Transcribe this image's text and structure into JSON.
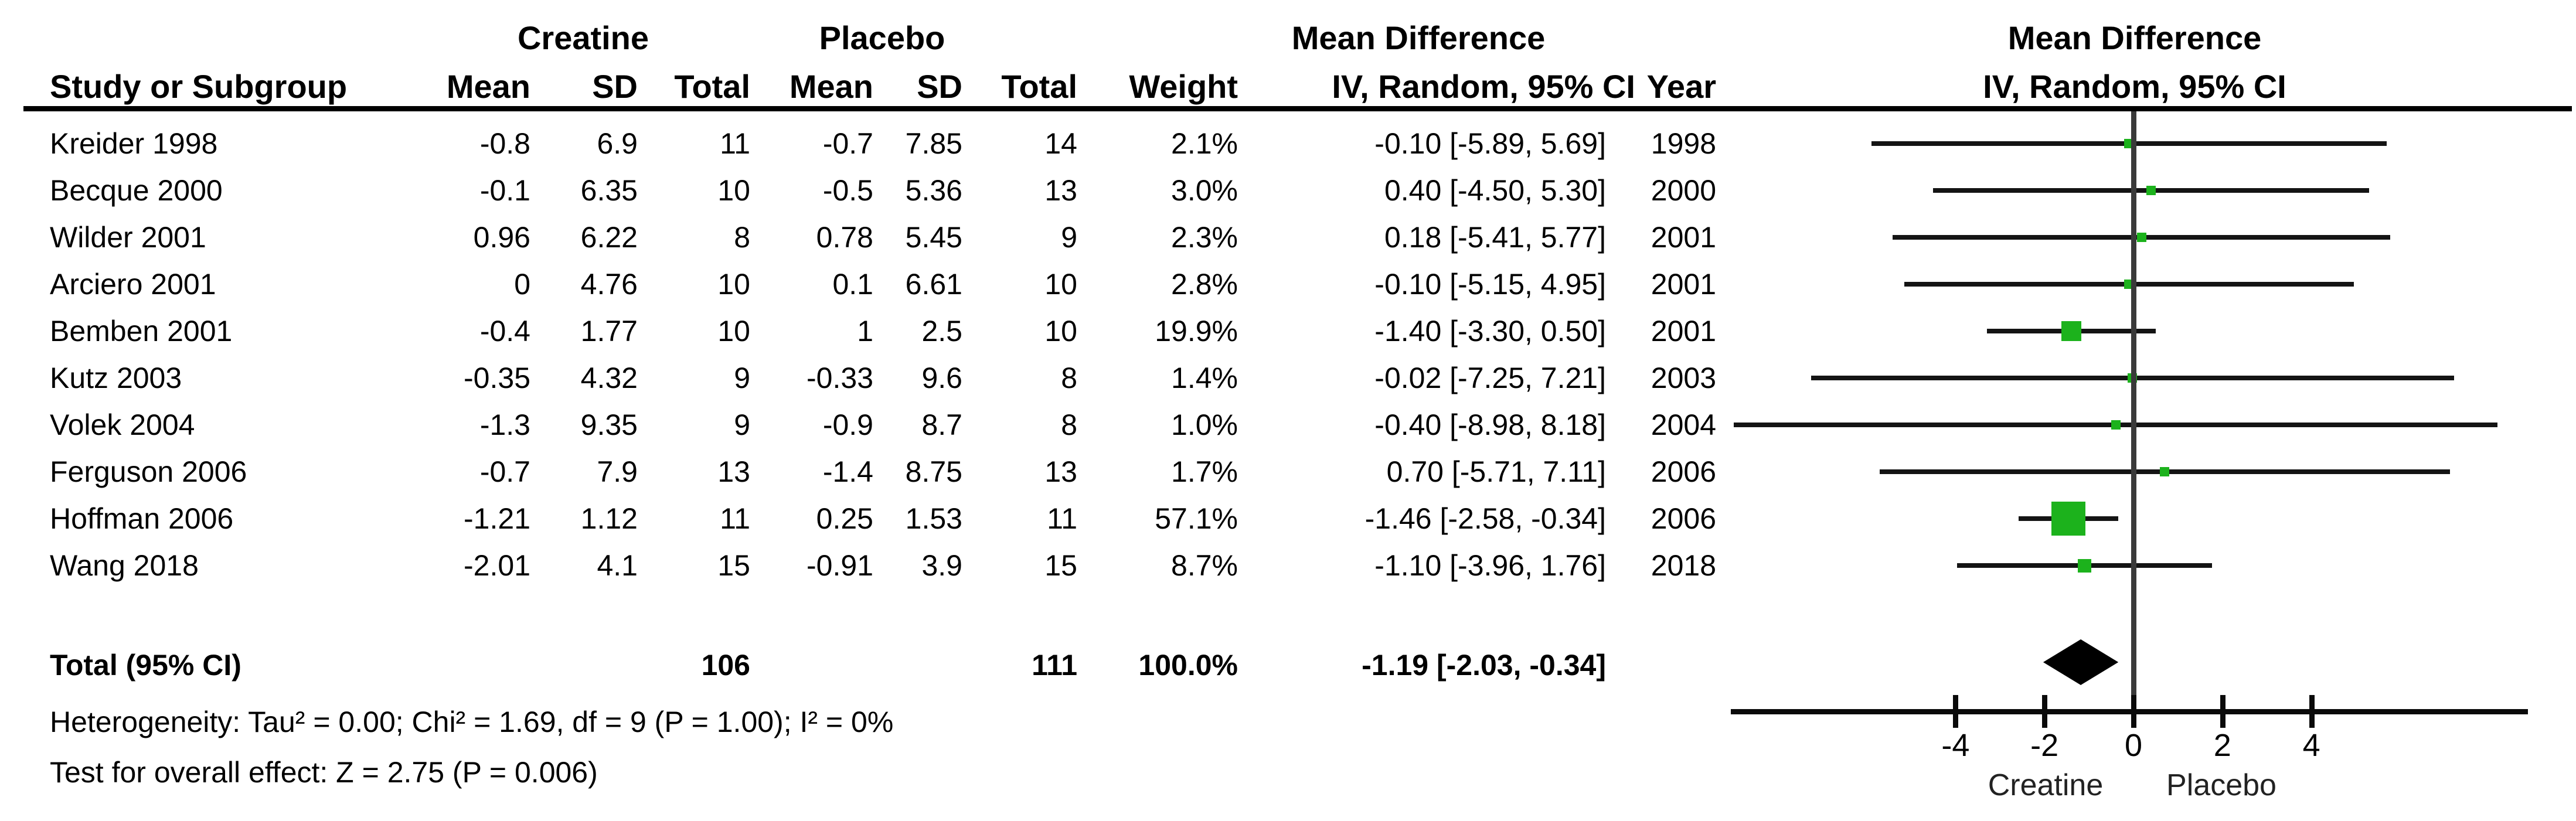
{
  "table": {
    "headers": {
      "group1": "Creatine",
      "group2": "Placebo",
      "study": "Study or Subgroup",
      "mean": "Mean",
      "sd": "SD",
      "total": "Total",
      "weight": "Weight",
      "mean_difference": "Mean Difference",
      "iv_random": "IV, Random, 95% CI",
      "year": "Year"
    },
    "rows": [
      {
        "name": "Kreider 1998",
        "c_mean": "-0.8",
        "c_sd": "6.9",
        "c_total": "11",
        "p_mean": "-0.7",
        "p_sd": "7.85",
        "p_total": "14",
        "weight": "2.1%",
        "ci": "-0.10 [-5.89, 5.69]",
        "year": "1998"
      },
      {
        "name": "Becque 2000",
        "c_mean": "-0.1",
        "c_sd": "6.35",
        "c_total": "10",
        "p_mean": "-0.5",
        "p_sd": "5.36",
        "p_total": "13",
        "weight": "3.0%",
        "ci": "0.40 [-4.50, 5.30]",
        "year": "2000"
      },
      {
        "name": "Wilder 2001",
        "c_mean": "0.96",
        "c_sd": "6.22",
        "c_total": "8",
        "p_mean": "0.78",
        "p_sd": "5.45",
        "p_total": "9",
        "weight": "2.3%",
        "ci": "0.18 [-5.41, 5.77]",
        "year": "2001"
      },
      {
        "name": "Arciero 2001",
        "c_mean": "0",
        "c_sd": "4.76",
        "c_total": "10",
        "p_mean": "0.1",
        "p_sd": "6.61",
        "p_total": "10",
        "weight": "2.8%",
        "ci": "-0.10 [-5.15, 4.95]",
        "year": "2001"
      },
      {
        "name": "Bemben 2001",
        "c_mean": "-0.4",
        "c_sd": "1.77",
        "c_total": "10",
        "p_mean": "1",
        "p_sd": "2.5",
        "p_total": "10",
        "weight": "19.9%",
        "ci": "-1.40 [-3.30, 0.50]",
        "year": "2001"
      },
      {
        "name": "Kutz 2003",
        "c_mean": "-0.35",
        "c_sd": "4.32",
        "c_total": "9",
        "p_mean": "-0.33",
        "p_sd": "9.6",
        "p_total": "8",
        "weight": "1.4%",
        "ci": "-0.02 [-7.25, 7.21]",
        "year": "2003"
      },
      {
        "name": "Volek 2004",
        "c_mean": "-1.3",
        "c_sd": "9.35",
        "c_total": "9",
        "p_mean": "-0.9",
        "p_sd": "8.7",
        "p_total": "8",
        "weight": "1.0%",
        "ci": "-0.40 [-8.98, 8.18]",
        "year": "2004"
      },
      {
        "name": "Ferguson 2006",
        "c_mean": "-0.7",
        "c_sd": "7.9",
        "c_total": "13",
        "p_mean": "-1.4",
        "p_sd": "8.75",
        "p_total": "13",
        "weight": "1.7%",
        "ci": "0.70 [-5.71, 7.11]",
        "year": "2006"
      },
      {
        "name": "Hoffman 2006",
        "c_mean": "-1.21",
        "c_sd": "1.12",
        "c_total": "11",
        "p_mean": "0.25",
        "p_sd": "1.53",
        "p_total": "11",
        "weight": "57.1%",
        "ci": "-1.46 [-2.58, -0.34]",
        "year": "2006"
      },
      {
        "name": "Wang 2018",
        "c_mean": "-2.01",
        "c_sd": "4.1",
        "c_total": "15",
        "p_mean": "-0.91",
        "p_sd": "3.9",
        "p_total": "15",
        "weight": "8.7%",
        "ci": "-1.10 [-3.96, 1.76]",
        "year": "2018"
      }
    ],
    "total_row": {
      "label": "Total (95% CI)",
      "c_total": "106",
      "p_total": "111",
      "weight": "100.0%",
      "ci": "-1.19 [-2.03, -0.34]"
    }
  },
  "footnotes": {
    "heterogeneity": "Heterogeneity: Tau² = 0.00; Chi² = 1.69, df = 9 (P = 1.00); I² = 0%",
    "overall_effect": "Test for overall effect: Z = 2.75 (P = 0.006)"
  },
  "plot": {
    "axis_ticks": [
      "-4",
      "-2",
      "0",
      "2",
      "4"
    ],
    "left_label": "Creatine",
    "right_label": "Placebo"
  },
  "colors": {
    "square_green": "#1cb21c",
    "diamond_black": "#000000",
    "ci_line": "#141414",
    "zero_line": "#3a3a3a"
  },
  "chart_data": {
    "type": "forest",
    "title": "Mean Difference, IV, Random, 95% CI",
    "xlabel_left": "Creatine",
    "xlabel_right": "Placebo",
    "axis": {
      "ticks": [
        -4,
        -2,
        0,
        2,
        4
      ],
      "xlim": [
        -9.05,
        8.85
      ],
      "zero_line": 0
    },
    "studies": [
      {
        "name": "Kreider 1998",
        "year": 1998,
        "md": -0.1,
        "ci_low": -5.89,
        "ci_high": 5.69,
        "weight_pct": 2.1
      },
      {
        "name": "Becque 2000",
        "year": 2000,
        "md": 0.4,
        "ci_low": -4.5,
        "ci_high": 5.3,
        "weight_pct": 3.0
      },
      {
        "name": "Wilder 2001",
        "year": 2001,
        "md": 0.18,
        "ci_low": -5.41,
        "ci_high": 5.77,
        "weight_pct": 2.3
      },
      {
        "name": "Arciero 2001",
        "year": 2001,
        "md": -0.1,
        "ci_low": -5.15,
        "ci_high": 4.95,
        "weight_pct": 2.8
      },
      {
        "name": "Bemben 2001",
        "year": 2001,
        "md": -1.4,
        "ci_low": -3.3,
        "ci_high": 0.5,
        "weight_pct": 19.9
      },
      {
        "name": "Kutz 2003",
        "year": 2003,
        "md": -0.02,
        "ci_low": -7.25,
        "ci_high": 7.21,
        "weight_pct": 1.4
      },
      {
        "name": "Volek 2004",
        "year": 2004,
        "md": -0.4,
        "ci_low": -8.98,
        "ci_high": 8.18,
        "weight_pct": 1.0
      },
      {
        "name": "Ferguson 2006",
        "year": 2006,
        "md": 0.7,
        "ci_low": -5.71,
        "ci_high": 7.11,
        "weight_pct": 1.7
      },
      {
        "name": "Hoffman 2006",
        "year": 2006,
        "md": -1.46,
        "ci_low": -2.58,
        "ci_high": -0.34,
        "weight_pct": 57.1
      },
      {
        "name": "Wang 2018",
        "year": 2018,
        "md": -1.1,
        "ci_low": -3.96,
        "ci_high": 1.76,
        "weight_pct": 8.7
      }
    ],
    "total": {
      "label": "Total (95% CI)",
      "md": -1.19,
      "ci_low": -2.03,
      "ci_high": -0.34,
      "weight_pct": 100.0,
      "creatine_n": 106,
      "placebo_n": 111
    },
    "heterogeneity": {
      "tau2": 0.0,
      "chi2": 1.69,
      "df": 9,
      "p": 1.0,
      "i2_pct": 0
    },
    "overall_effect": {
      "z": 2.75,
      "p": 0.006
    }
  }
}
